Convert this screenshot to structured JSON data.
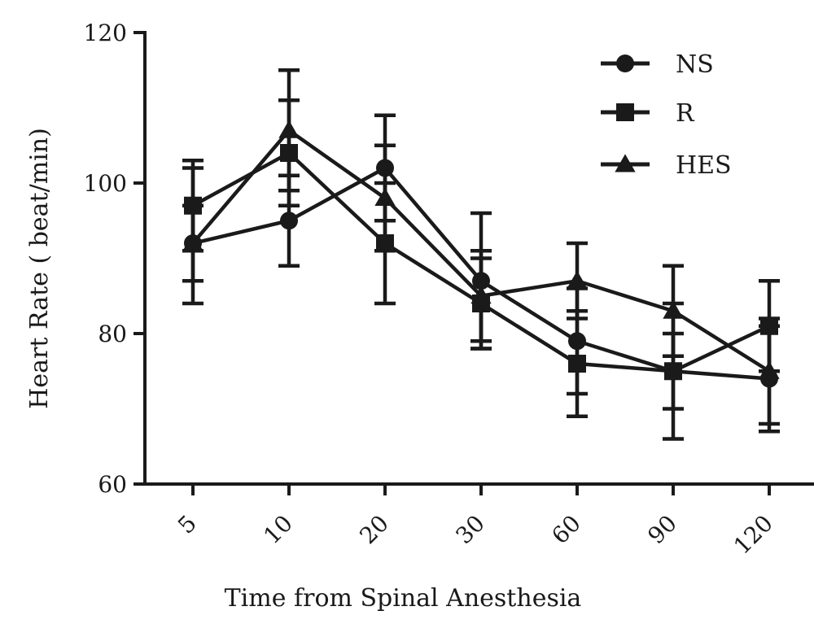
{
  "chart_data": {
    "type": "line",
    "title": "",
    "xlabel": "Time from Spinal Anesthesia",
    "ylabel": "Heart Rate ( beat/min)",
    "categories": [
      "5",
      "10",
      "20",
      "30",
      "60",
      "90",
      "120"
    ],
    "ylim": [
      60,
      120
    ],
    "yticks": [
      60,
      80,
      100,
      120
    ],
    "legend_position": "top-right",
    "grid": false,
    "line_color": "#1a1a1a",
    "series": [
      {
        "name": "NS",
        "marker": "circle",
        "values": [
          92,
          95,
          102,
          87,
          79,
          75,
          74
        ],
        "err_low": [
          87,
          89,
          95,
          79,
          72,
          70,
          67
        ],
        "err_high": [
          97,
          101,
          109,
          96,
          86,
          80,
          81
        ]
      },
      {
        "name": "R",
        "marker": "square",
        "values": [
          97,
          104,
          92,
          84,
          76,
          75,
          81
        ],
        "err_low": [
          91,
          97,
          84,
          78,
          69,
          66,
          75
        ],
        "err_high": [
          103,
          111,
          100,
          90,
          83,
          84,
          87
        ]
      },
      {
        "name": "HES",
        "marker": "triangle",
        "values": [
          92,
          107,
          98,
          85,
          87,
          83,
          75
        ],
        "err_low": [
          84,
          99,
          91,
          78,
          82,
          77,
          68
        ],
        "err_high": [
          102,
          115,
          105,
          91,
          92,
          89,
          82
        ]
      }
    ]
  }
}
